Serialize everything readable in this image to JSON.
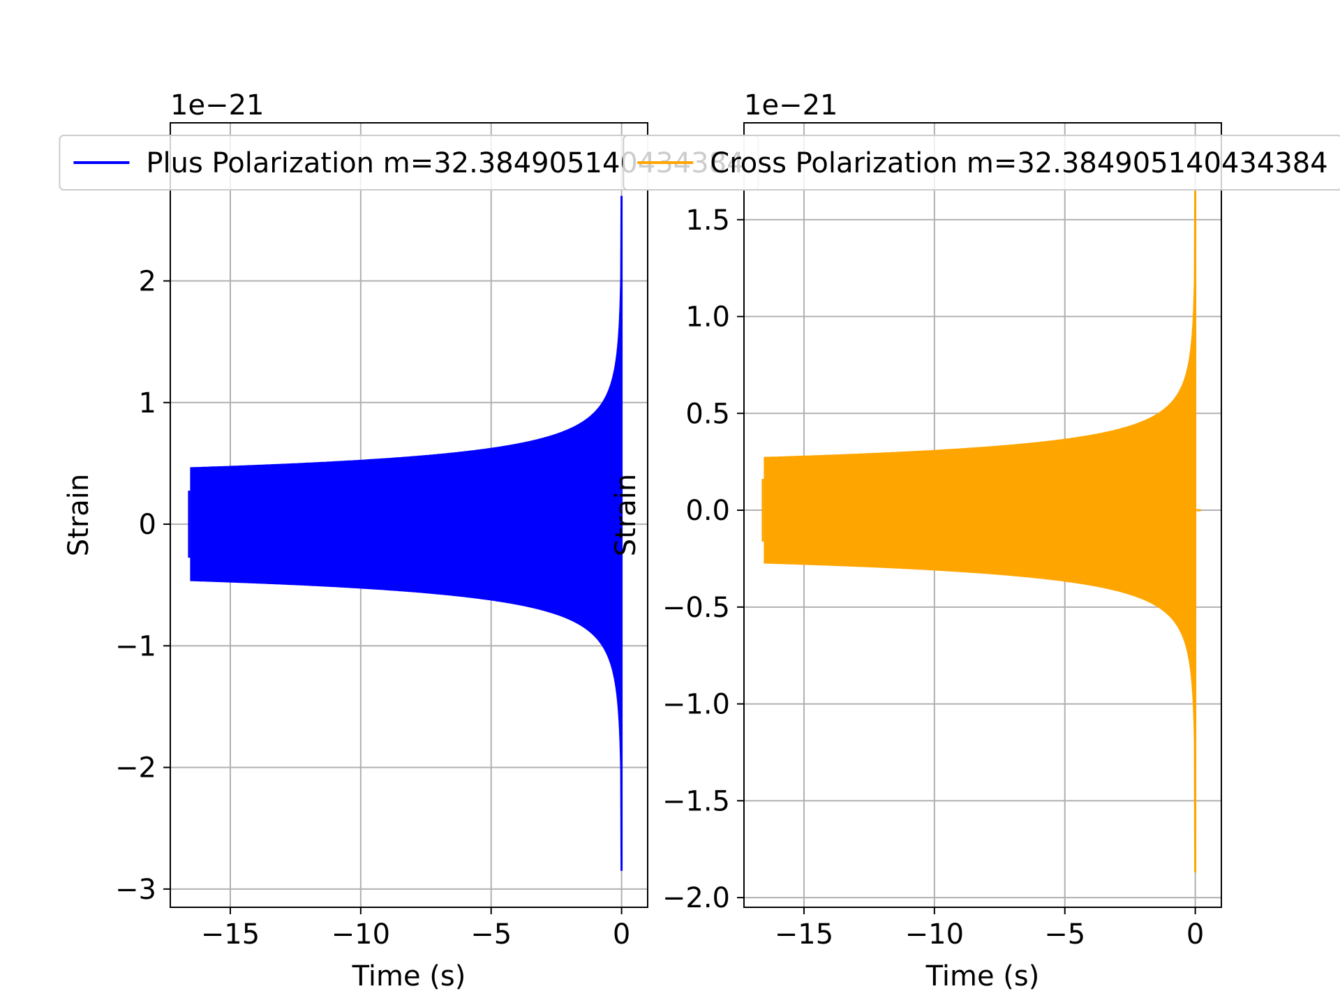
{
  "chart_data": [
    {
      "type": "line",
      "xlabel": "Time (s)",
      "ylabel": "Strain",
      "offset_text": "1e−21",
      "xlim": [
        -17.3,
        1.0
      ],
      "ylim": [
        -3.15,
        3.3
      ],
      "xticks": [
        -15,
        -10,
        -5,
        0
      ],
      "xtick_labels": [
        "−15",
        "−10",
        "−5",
        "0"
      ],
      "yticks": [
        -3,
        -2,
        -1,
        0,
        1,
        2
      ],
      "ytick_labels": [
        "−3",
        "−2",
        "−1",
        "0",
        "1",
        "2"
      ],
      "grid": true,
      "legend": "upper center",
      "series": [
        {
          "name": "Plus Polarization m=32.384905140434384",
          "color": "#0000ff",
          "envelope": {
            "t_start": -16.5,
            "t_end": 0.0,
            "start_amplitude": 0.46,
            "peak_max": 2.7,
            "peak_min": -2.85
          }
        }
      ]
    },
    {
      "type": "line",
      "xlabel": "Time (s)",
      "ylabel": "Strain",
      "offset_text": "1e−21",
      "xlim": [
        -17.3,
        1.0
      ],
      "ylim": [
        -2.05,
        2.0
      ],
      "xticks": [
        -15,
        -10,
        -5,
        0
      ],
      "xtick_labels": [
        "−15",
        "−10",
        "−5",
        "0"
      ],
      "yticks": [
        -2.0,
        -1.5,
        -1.0,
        -0.5,
        0.0,
        0.5,
        1.0,
        1.5
      ],
      "ytick_labels": [
        "−2.0",
        "−1.5",
        "−1.0",
        "−0.5",
        "0.0",
        "0.5",
        "1.0",
        "1.5"
      ],
      "grid": true,
      "legend": "upper center",
      "series": [
        {
          "name": "Cross Polarization m=32.384905140434384",
          "color": "#ffa500",
          "envelope": {
            "t_start": -16.5,
            "t_end": 0.0,
            "start_amplitude": 0.27,
            "peak_max": 1.65,
            "peak_min": -1.87
          }
        }
      ]
    }
  ]
}
